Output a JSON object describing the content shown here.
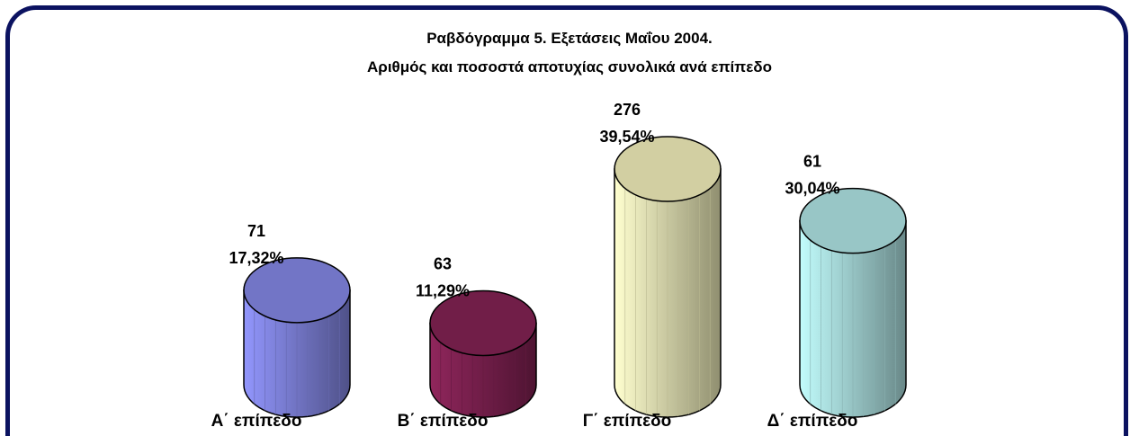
{
  "chart_data": {
    "type": "cylinder",
    "title": "Ραβδόγραμμα 5. Εξετάσεις Μαΐου 2004.",
    "subtitle": "Αριθμός και ποσοστά αποτυχίας συνολικά ανά επίπεδο",
    "categories": [
      "Α΄ επίπεδο",
      "Β΄ επίπεδο",
      "Γ΄ επίπεδο",
      "Δ΄ επίπεδο"
    ],
    "counts": [
      71,
      63,
      276,
      61
    ],
    "values": [
      17.32,
      11.29,
      39.54,
      30.04
    ],
    "value_labels": [
      "17,32%",
      "11,29%",
      "39,54%",
      "30,04%"
    ],
    "colors": [
      "#7f82dc",
      "#7d2150",
      "#e9e6b4",
      "#a9dcdc"
    ]
  }
}
